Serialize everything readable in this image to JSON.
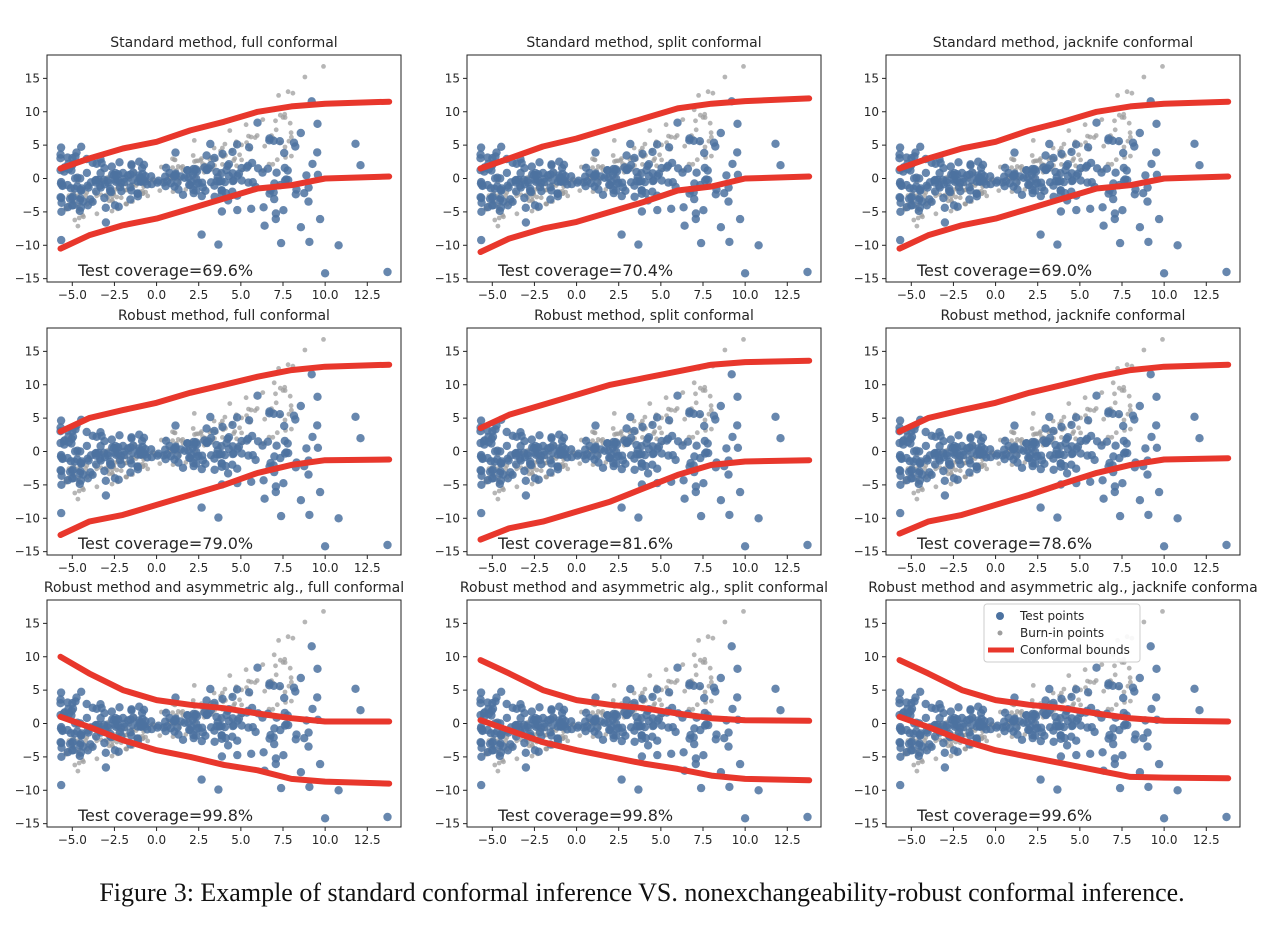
{
  "caption": "Figure 3: Example of standard conformal inference VS. nonexchangeability-robust conformal inference.",
  "colors": {
    "test": "#4c72a0",
    "burnin": "#9e9e9e",
    "bounds": "#e8372c"
  },
  "chart_data": [
    {
      "type": "scatter",
      "title": "Standard method, full conformal",
      "annotation": "Test coverage=69.6%",
      "xlim": [
        -6.5,
        14.5
      ],
      "ylim": [
        -15.5,
        18.5
      ],
      "xticks": [
        "−5.0",
        "−2.5",
        "0.0",
        "2.5",
        "5.0",
        "7.5",
        "10.0",
        "12.5"
      ],
      "yticks": [
        "−15",
        "−10",
        "−5",
        "0",
        "5",
        "10",
        "15"
      ],
      "bounds": {
        "upper": [
          [
            -5.7,
            1.5
          ],
          [
            -4,
            3
          ],
          [
            -2,
            4.5
          ],
          [
            0,
            5.5
          ],
          [
            2,
            7.2
          ],
          [
            4,
            8.5
          ],
          [
            6,
            10
          ],
          [
            8,
            10.8
          ],
          [
            10,
            11.2
          ],
          [
            13.8,
            11.5
          ]
        ],
        "lower": [
          [
            -5.7,
            -10.5
          ],
          [
            -4,
            -8.5
          ],
          [
            -2,
            -7
          ],
          [
            0,
            -6
          ],
          [
            2,
            -4.5
          ],
          [
            4,
            -3
          ],
          [
            6,
            -1.5
          ],
          [
            8,
            -1
          ],
          [
            10,
            0
          ],
          [
            13.8,
            0.3
          ]
        ]
      }
    },
    {
      "type": "scatter",
      "title": "Standard method, split conformal",
      "annotation": "Test coverage=70.4%",
      "xlim": [
        -6.5,
        14.5
      ],
      "ylim": [
        -15.5,
        18.5
      ],
      "xticks": [
        "−5.0",
        "−2.5",
        "0.0",
        "2.5",
        "5.0",
        "7.5",
        "10.0",
        "12.5"
      ],
      "yticks": [
        "−15",
        "−10",
        "−5",
        "0",
        "5",
        "10",
        "15"
      ],
      "bounds": {
        "upper": [
          [
            -5.7,
            1.5
          ],
          [
            -4,
            3
          ],
          [
            -2,
            4.8
          ],
          [
            0,
            6
          ],
          [
            2,
            7.5
          ],
          [
            4,
            9
          ],
          [
            6,
            10.5
          ],
          [
            8,
            11.2
          ],
          [
            10,
            11.6
          ],
          [
            13.8,
            12
          ]
        ],
        "lower": [
          [
            -5.7,
            -11
          ],
          [
            -4,
            -9
          ],
          [
            -2,
            -7.5
          ],
          [
            0,
            -6.5
          ],
          [
            2,
            -5
          ],
          [
            4,
            -3.5
          ],
          [
            6,
            -1.8
          ],
          [
            8,
            -1.2
          ],
          [
            10,
            0
          ],
          [
            13.8,
            0.3
          ]
        ]
      }
    },
    {
      "type": "scatter",
      "title": "Standard method, jacknife conformal",
      "annotation": "Test coverage=69.0%",
      "xlim": [
        -6.5,
        14.5
      ],
      "ylim": [
        -15.5,
        18.5
      ],
      "xticks": [
        "−5.0",
        "−2.5",
        "0.0",
        "2.5",
        "5.0",
        "7.5",
        "10.0",
        "12.5"
      ],
      "yticks": [
        "−15",
        "−10",
        "−5",
        "0",
        "5",
        "10",
        "15"
      ],
      "bounds": {
        "upper": [
          [
            -5.7,
            1.5
          ],
          [
            -4,
            3
          ],
          [
            -2,
            4.5
          ],
          [
            0,
            5.5
          ],
          [
            2,
            7.2
          ],
          [
            4,
            8.5
          ],
          [
            6,
            10
          ],
          [
            8,
            10.8
          ],
          [
            10,
            11.2
          ],
          [
            13.8,
            11.5
          ]
        ],
        "lower": [
          [
            -5.7,
            -10.5
          ],
          [
            -4,
            -8.5
          ],
          [
            -2,
            -7
          ],
          [
            0,
            -6
          ],
          [
            2,
            -4.5
          ],
          [
            4,
            -3
          ],
          [
            6,
            -1.5
          ],
          [
            8,
            -1
          ],
          [
            10,
            0
          ],
          [
            13.8,
            0.3
          ]
        ]
      }
    },
    {
      "type": "scatter",
      "title": "Robust method, full conformal",
      "annotation": "Test coverage=79.0%",
      "xlim": [
        -6.5,
        14.5
      ],
      "ylim": [
        -15.5,
        18.5
      ],
      "xticks": [
        "−5.0",
        "−2.5",
        "0.0",
        "2.5",
        "5.0",
        "7.5",
        "10.0",
        "12.5"
      ],
      "yticks": [
        "−15",
        "−10",
        "−5",
        "0",
        "5",
        "10",
        "15"
      ],
      "bounds": {
        "upper": [
          [
            -5.7,
            3
          ],
          [
            -4,
            5
          ],
          [
            -2,
            6.2
          ],
          [
            0,
            7.3
          ],
          [
            2,
            8.8
          ],
          [
            4,
            10
          ],
          [
            6,
            11.2
          ],
          [
            8,
            12.2
          ],
          [
            10,
            12.7
          ],
          [
            13.8,
            13
          ]
        ],
        "lower": [
          [
            -5.7,
            -12.5
          ],
          [
            -4,
            -10.5
          ],
          [
            -2,
            -9.5
          ],
          [
            0,
            -8
          ],
          [
            2,
            -6.5
          ],
          [
            4,
            -5
          ],
          [
            6,
            -3.2
          ],
          [
            8,
            -2
          ],
          [
            10,
            -1.3
          ],
          [
            13.8,
            -1.2
          ]
        ]
      }
    },
    {
      "type": "scatter",
      "title": "Robust method, split conformal",
      "annotation": "Test coverage=81.6%",
      "xlim": [
        -6.5,
        14.5
      ],
      "ylim": [
        -15.5,
        18.5
      ],
      "xticks": [
        "−5.0",
        "−2.5",
        "0.0",
        "2.5",
        "5.0",
        "7.5",
        "10.0",
        "12.5"
      ],
      "yticks": [
        "−15",
        "−10",
        "−5",
        "0",
        "5",
        "10",
        "15"
      ],
      "bounds": {
        "upper": [
          [
            -5.7,
            3.5
          ],
          [
            -4,
            5.5
          ],
          [
            -2,
            7
          ],
          [
            0,
            8.5
          ],
          [
            2,
            10
          ],
          [
            4,
            11
          ],
          [
            6,
            12
          ],
          [
            8,
            13
          ],
          [
            10,
            13.4
          ],
          [
            13.8,
            13.6
          ]
        ],
        "lower": [
          [
            -5.7,
            -13.2
          ],
          [
            -4,
            -11.5
          ],
          [
            -2,
            -10.5
          ],
          [
            0,
            -9
          ],
          [
            2,
            -7.5
          ],
          [
            4,
            -5.5
          ],
          [
            6,
            -3.5
          ],
          [
            8,
            -2
          ],
          [
            10,
            -1.5
          ],
          [
            13.8,
            -1.3
          ]
        ]
      }
    },
    {
      "type": "scatter",
      "title": "Robust method, jacknife conformal",
      "annotation": "Test coverage=78.6%",
      "xlim": [
        -6.5,
        14.5
      ],
      "ylim": [
        -15.5,
        18.5
      ],
      "xticks": [
        "−5.0",
        "−2.5",
        "0.0",
        "2.5",
        "5.0",
        "7.5",
        "10.0",
        "12.5"
      ],
      "yticks": [
        "−15",
        "−10",
        "−5",
        "0",
        "5",
        "10",
        "15"
      ],
      "bounds": {
        "upper": [
          [
            -5.7,
            3
          ],
          [
            -4,
            5
          ],
          [
            -2,
            6.2
          ],
          [
            0,
            7.3
          ],
          [
            2,
            8.8
          ],
          [
            4,
            10
          ],
          [
            6,
            11.2
          ],
          [
            8,
            12.2
          ],
          [
            10,
            12.7
          ],
          [
            13.8,
            13
          ]
        ],
        "lower": [
          [
            -5.7,
            -12.3
          ],
          [
            -4,
            -10.5
          ],
          [
            -2,
            -9.5
          ],
          [
            0,
            -8
          ],
          [
            2,
            -6.5
          ],
          [
            4,
            -4.8
          ],
          [
            6,
            -3.2
          ],
          [
            8,
            -2
          ],
          [
            10,
            -1.2
          ],
          [
            13.8,
            -1
          ]
        ]
      }
    },
    {
      "type": "scatter",
      "title": "Robust method and asymmetric alg., full conformal",
      "annotation": "Test coverage=99.8%",
      "xlim": [
        -6.5,
        14.5
      ],
      "ylim": [
        -15.5,
        18.5
      ],
      "xticks": [
        "−5.0",
        "−2.5",
        "0.0",
        "2.5",
        "5.0",
        "7.5",
        "10.0",
        "12.5"
      ],
      "yticks": [
        "−15",
        "−10",
        "−5",
        "0",
        "5",
        "10",
        "15"
      ],
      "bounds": {
        "upper": [
          [
            -5.7,
            10
          ],
          [
            -4,
            7.5
          ],
          [
            -2,
            5
          ],
          [
            0,
            3.5
          ],
          [
            2,
            2.8
          ],
          [
            4,
            2.3
          ],
          [
            6,
            1.5
          ],
          [
            8,
            0.8
          ],
          [
            10,
            0.3
          ],
          [
            13.8,
            0.3
          ]
        ],
        "lower": [
          [
            -5.7,
            1
          ],
          [
            -4,
            -0.5
          ],
          [
            -2,
            -2.5
          ],
          [
            0,
            -4
          ],
          [
            2,
            -5
          ],
          [
            4,
            -6.2
          ],
          [
            6,
            -7
          ],
          [
            8,
            -8.3
          ],
          [
            10,
            -8.7
          ],
          [
            13.8,
            -9
          ]
        ]
      }
    },
    {
      "type": "scatter",
      "title": "Robust method and asymmetric alg., split conformal",
      "annotation": "Test coverage=99.8%",
      "xlim": [
        -6.5,
        14.5
      ],
      "ylim": [
        -15.5,
        18.5
      ],
      "xticks": [
        "−5.0",
        "−2.5",
        "0.0",
        "2.5",
        "5.0",
        "7.5",
        "10.0",
        "12.5"
      ],
      "yticks": [
        "−15",
        "−10",
        "−5",
        "0",
        "5",
        "10",
        "15"
      ],
      "bounds": {
        "upper": [
          [
            -5.7,
            9.5
          ],
          [
            -4,
            7.5
          ],
          [
            -2,
            5
          ],
          [
            0,
            3.5
          ],
          [
            2,
            2.8
          ],
          [
            4,
            2.3
          ],
          [
            6,
            1.5
          ],
          [
            8,
            0.8
          ],
          [
            10,
            0.5
          ],
          [
            13.8,
            0.4
          ]
        ],
        "lower": [
          [
            -5.7,
            0.5
          ],
          [
            -4,
            -1
          ],
          [
            -2,
            -2.8
          ],
          [
            0,
            -4
          ],
          [
            2,
            -5
          ],
          [
            4,
            -6
          ],
          [
            6,
            -6.8
          ],
          [
            8,
            -7.8
          ],
          [
            10,
            -8.3
          ],
          [
            13.8,
            -8.5
          ]
        ]
      }
    },
    {
      "type": "scatter",
      "title": "Robust method and asymmetric alg., jacknife conforma",
      "annotation": "Test coverage=99.6%",
      "xlim": [
        -6.5,
        14.5
      ],
      "ylim": [
        -15.5,
        18.5
      ],
      "xticks": [
        "−5.0",
        "−2.5",
        "0.0",
        "2.5",
        "5.0",
        "7.5",
        "10.0",
        "12.5"
      ],
      "yticks": [
        "−15",
        "−10",
        "−5",
        "0",
        "5",
        "10",
        "15"
      ],
      "legend": {
        "placement": "top-right",
        "entries": [
          "Test points",
          "Burn-in points",
          "Conformal bounds"
        ]
      },
      "bounds": {
        "upper": [
          [
            -5.7,
            9.5
          ],
          [
            -4,
            7.5
          ],
          [
            -2,
            5
          ],
          [
            0,
            3.5
          ],
          [
            2,
            2.8
          ],
          [
            4,
            2.3
          ],
          [
            6,
            1.5
          ],
          [
            8,
            0.8
          ],
          [
            10,
            0.4
          ],
          [
            13.8,
            0.3
          ]
        ],
        "lower": [
          [
            -5.7,
            1
          ],
          [
            -4,
            -0.5
          ],
          [
            -2,
            -2.5
          ],
          [
            0,
            -4
          ],
          [
            2,
            -5
          ],
          [
            4,
            -6
          ],
          [
            6,
            -7
          ],
          [
            8,
            -8
          ],
          [
            10,
            -8.1
          ],
          [
            13.8,
            -8.2
          ]
        ]
      }
    }
  ]
}
